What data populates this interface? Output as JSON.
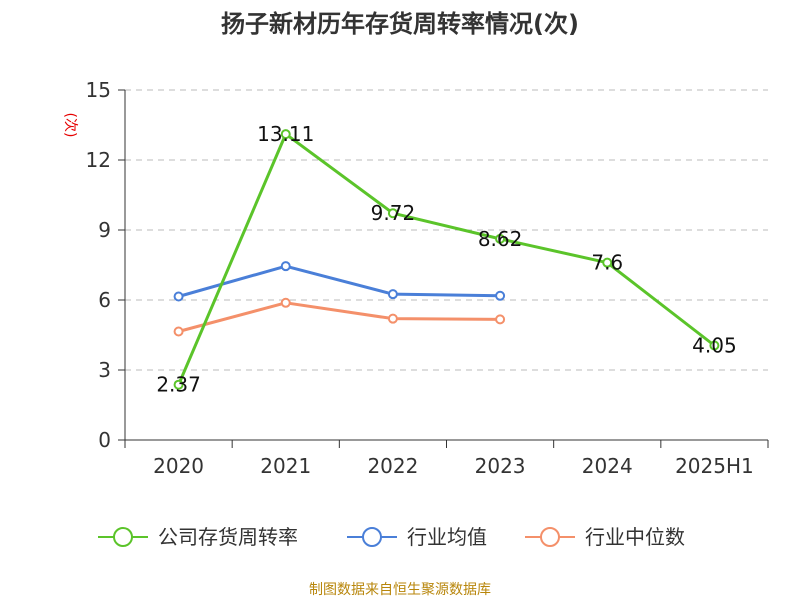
{
  "chart_data": {
    "type": "line",
    "title": "扬子新材历年存货周转率情况(次)",
    "ylabel": "(次)",
    "xlabel": "",
    "categories": [
      "2020",
      "2021",
      "2022",
      "2023",
      "2024",
      "2025H1"
    ],
    "ylim": [
      0,
      15
    ],
    "yticks": [
      0,
      3,
      6,
      9,
      12,
      15
    ],
    "grid": true,
    "legend_position": "bottom",
    "series": [
      {
        "name": "公司存货周转率",
        "color": "#5bc42a",
        "values": [
          2.37,
          13.11,
          9.72,
          8.62,
          7.6,
          4.05
        ],
        "data_labels": [
          "2.37",
          "13.11",
          "9.72",
          "8.62",
          "7.6",
          "4.05"
        ]
      },
      {
        "name": "行业均值",
        "color": "#4a7fd8",
        "values": [
          6.15,
          7.45,
          6.25,
          6.18,
          null,
          null
        ]
      },
      {
        "name": "行业中位数",
        "color": "#f4906a",
        "values": [
          4.65,
          5.88,
          5.2,
          5.17,
          null,
          null
        ]
      }
    ],
    "source": "制图数据来自恒生聚源数据库"
  }
}
